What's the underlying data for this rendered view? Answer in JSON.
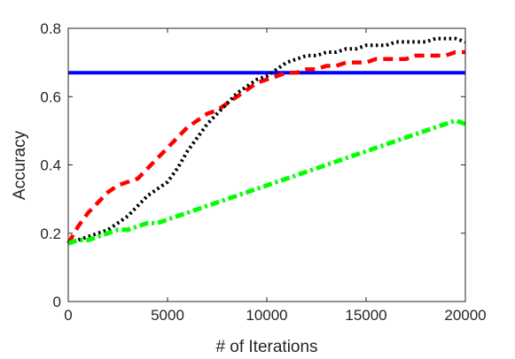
{
  "chart_data": {
    "type": "line",
    "title": "",
    "xlabel": "# of Iterations",
    "ylabel": "Accuracy",
    "xlim": [
      0,
      20000
    ],
    "ylim": [
      0,
      0.8
    ],
    "grid": false,
    "xticks": [
      0,
      5000,
      10000,
      15000,
      20000
    ],
    "yticks": [
      0,
      0.2,
      0.4,
      0.6,
      0.8
    ],
    "xtick_labels": [
      "0",
      "5000",
      "10000",
      "15000",
      "20000"
    ],
    "ytick_labels": [
      "0",
      "0.2",
      "0.4",
      "0.6",
      "0.8"
    ],
    "series": [
      {
        "style": "solid",
        "color": "#0000ff",
        "x": [
          0,
          20000
        ],
        "y": [
          0.67,
          0.67
        ]
      },
      {
        "style": "dashed",
        "color": "#ff0000",
        "x": [
          0,
          500,
          1000,
          1500,
          2000,
          2500,
          3000,
          3500,
          4000,
          4500,
          5000,
          5500,
          6000,
          6500,
          7000,
          7500,
          8000,
          8500,
          9000,
          9500,
          10000,
          10500,
          11000,
          11500,
          12000,
          12500,
          13000,
          13500,
          14000,
          14500,
          15000,
          15500,
          16000,
          16500,
          17000,
          17500,
          18000,
          18500,
          19000,
          19500,
          20000
        ],
        "y": [
          0.17,
          0.22,
          0.26,
          0.29,
          0.32,
          0.34,
          0.35,
          0.36,
          0.39,
          0.42,
          0.45,
          0.48,
          0.51,
          0.53,
          0.55,
          0.56,
          0.58,
          0.6,
          0.62,
          0.64,
          0.65,
          0.66,
          0.67,
          0.67,
          0.68,
          0.68,
          0.69,
          0.69,
          0.7,
          0.7,
          0.7,
          0.71,
          0.71,
          0.71,
          0.71,
          0.72,
          0.72,
          0.72,
          0.72,
          0.73,
          0.73
        ]
      },
      {
        "style": "dotted",
        "color": "#000000",
        "x": [
          0,
          500,
          1000,
          1500,
          2000,
          2500,
          3000,
          3500,
          4000,
          4500,
          5000,
          5500,
          6000,
          6500,
          7000,
          7500,
          8000,
          8500,
          9000,
          9500,
          10000,
          10500,
          11000,
          11500,
          12000,
          12500,
          13000,
          13500,
          14000,
          14500,
          15000,
          15500,
          16000,
          16500,
          17000,
          17500,
          18000,
          18500,
          19000,
          19500,
          20000
        ],
        "y": [
          0.17,
          0.18,
          0.19,
          0.2,
          0.21,
          0.23,
          0.25,
          0.28,
          0.31,
          0.33,
          0.35,
          0.39,
          0.44,
          0.48,
          0.52,
          0.55,
          0.58,
          0.61,
          0.63,
          0.65,
          0.66,
          0.68,
          0.7,
          0.71,
          0.72,
          0.72,
          0.73,
          0.73,
          0.74,
          0.74,
          0.75,
          0.75,
          0.75,
          0.76,
          0.76,
          0.76,
          0.76,
          0.77,
          0.77,
          0.77,
          0.76
        ]
      },
      {
        "style": "dashdot",
        "color": "#00ff00",
        "x": [
          0,
          500,
          1000,
          1500,
          2000,
          2500,
          3000,
          3500,
          4000,
          4500,
          5000,
          5500,
          6000,
          6500,
          7000,
          7500,
          8000,
          8500,
          9000,
          9500,
          10000,
          10500,
          11000,
          11500,
          12000,
          12500,
          13000,
          13500,
          14000,
          14500,
          15000,
          15500,
          16000,
          16500,
          17000,
          17500,
          18000,
          18500,
          19000,
          19500,
          20000
        ],
        "y": [
          0.17,
          0.18,
          0.18,
          0.19,
          0.2,
          0.21,
          0.21,
          0.22,
          0.23,
          0.23,
          0.24,
          0.25,
          0.26,
          0.27,
          0.28,
          0.29,
          0.3,
          0.31,
          0.32,
          0.33,
          0.34,
          0.35,
          0.36,
          0.37,
          0.38,
          0.39,
          0.4,
          0.41,
          0.42,
          0.43,
          0.44,
          0.45,
          0.46,
          0.47,
          0.48,
          0.49,
          0.5,
          0.51,
          0.52,
          0.53,
          0.52
        ]
      }
    ]
  }
}
